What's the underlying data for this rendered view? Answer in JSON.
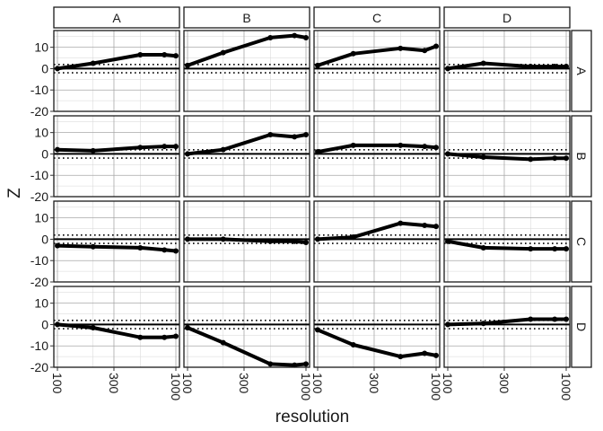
{
  "chart_data": {
    "type": "line",
    "xlabel": "resolution",
    "ylabel": "Z",
    "x_scale": "log",
    "xlim": [
      100,
      1000
    ],
    "ylim": [
      -20,
      17
    ],
    "x_ticks": [
      100,
      300,
      1000
    ],
    "x_tick_labels": [
      "100",
      "300",
      "1000"
    ],
    "y_ticks": [
      -20,
      -10,
      0,
      10
    ],
    "y_tick_labels": [
      "-20",
      "-10",
      "0",
      "10"
    ],
    "reference_lines": {
      "solid": 0,
      "dotted": [
        -1.96,
        1.96
      ]
    },
    "grid": true,
    "legend": "none",
    "col_facets": [
      "A",
      "B",
      "C",
      "D"
    ],
    "row_facets": [
      "A",
      "B",
      "C",
      "D"
    ],
    "x": [
      100,
      200,
      500,
      800,
      1000
    ],
    "panels": [
      {
        "row": "A",
        "col": "A",
        "values": [
          0,
          2.5,
          6.5,
          6.5,
          6
        ]
      },
      {
        "row": "A",
        "col": "B",
        "values": [
          1.5,
          7.5,
          14.5,
          15.5,
          14.5
        ]
      },
      {
        "row": "A",
        "col": "C",
        "values": [
          1.5,
          7,
          9.5,
          8.5,
          10.5
        ]
      },
      {
        "row": "A",
        "col": "D",
        "values": [
          0,
          2.5,
          1,
          1,
          1
        ]
      },
      {
        "row": "B",
        "col": "A",
        "values": [
          2,
          1.5,
          3,
          3.5,
          3.5
        ]
      },
      {
        "row": "B",
        "col": "B",
        "values": [
          0,
          2,
          9,
          8,
          9
        ]
      },
      {
        "row": "B",
        "col": "C",
        "values": [
          1,
          4,
          4,
          3.5,
          3
        ]
      },
      {
        "row": "B",
        "col": "D",
        "values": [
          0,
          -1.5,
          -2.5,
          -2,
          -2
        ]
      },
      {
        "row": "C",
        "col": "A",
        "values": [
          -3,
          -3.5,
          -4,
          -5,
          -5.5
        ]
      },
      {
        "row": "C",
        "col": "B",
        "values": [
          0,
          0,
          -1,
          -1,
          -1.5
        ]
      },
      {
        "row": "C",
        "col": "C",
        "values": [
          0,
          1,
          7.5,
          6.5,
          6
        ]
      },
      {
        "row": "C",
        "col": "D",
        "values": [
          -1,
          -4,
          -4.5,
          -4.5,
          -4.5
        ]
      },
      {
        "row": "D",
        "col": "A",
        "values": [
          0,
          -1.5,
          -6,
          -6,
          -5.5
        ]
      },
      {
        "row": "D",
        "col": "B",
        "values": [
          -1.5,
          -8.5,
          -18.5,
          -19,
          -18.5
        ]
      },
      {
        "row": "D",
        "col": "C",
        "values": [
          -2.5,
          -9.5,
          -15,
          -13.5,
          -14.5
        ]
      },
      {
        "row": "D",
        "col": "D",
        "values": [
          0,
          0.5,
          2.5,
          2.5,
          2.5
        ]
      }
    ]
  }
}
